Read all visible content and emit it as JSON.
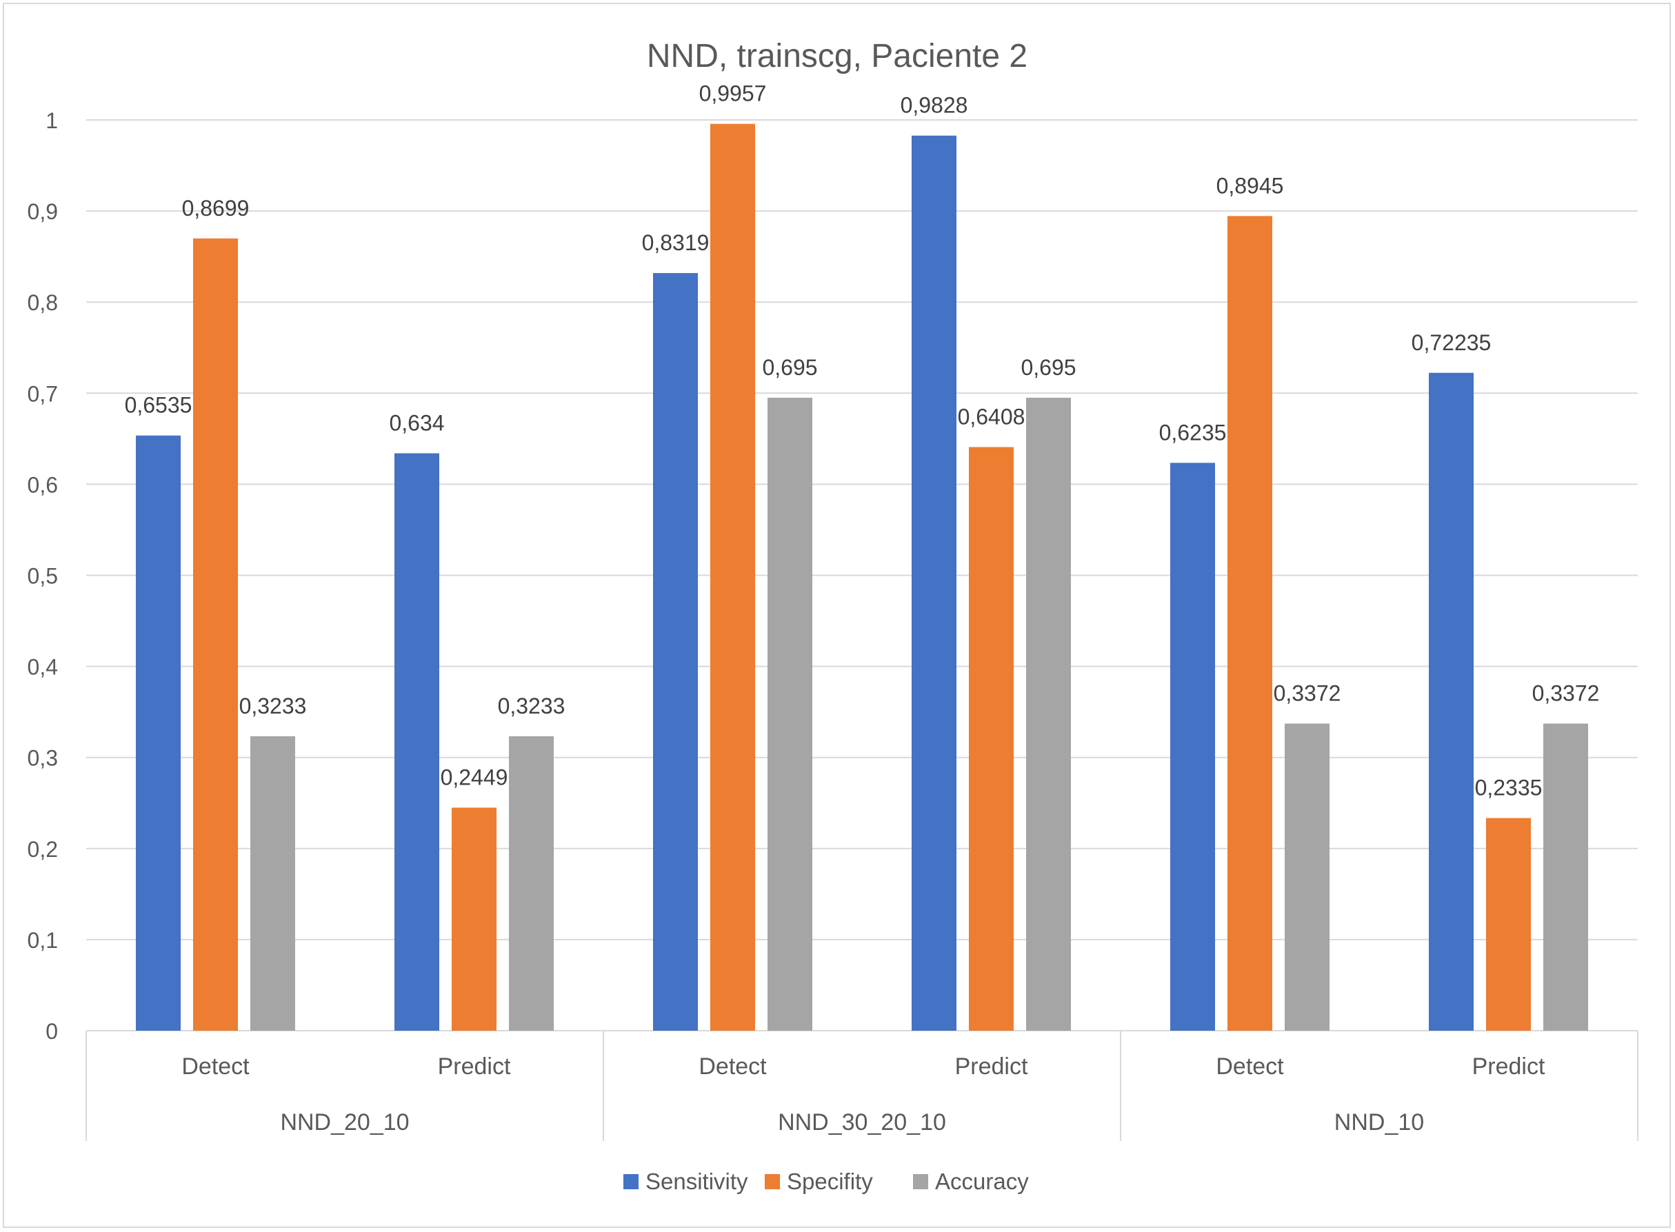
{
  "chart_data": {
    "type": "bar",
    "title": "NND, trainscg, Paciente 2",
    "xlabel": "",
    "ylabel": "",
    "ylim": [
      0,
      1
    ],
    "y_ticks": [
      "0",
      "0,1",
      "0,2",
      "0,3",
      "0,4",
      "0,5",
      "0,6",
      "0,7",
      "0,8",
      "0,9",
      "1"
    ],
    "grid": true,
    "legend_position": "bottom",
    "groups": [
      {
        "name": "NND_20_10",
        "categories": [
          "Detect",
          "Predict"
        ]
      },
      {
        "name": "NND_30_20_10",
        "categories": [
          "Detect",
          "Predict"
        ]
      },
      {
        "name": "NND_10",
        "categories": [
          "Detect",
          "Predict"
        ]
      }
    ],
    "categories": [
      "Detect",
      "Predict",
      "Detect",
      "Predict",
      "Detect",
      "Predict"
    ],
    "series": [
      {
        "name": "Sensitivity",
        "color": "#4472c4",
        "values": [
          0.6535,
          0.634,
          0.8319,
          0.9828,
          0.6235,
          0.72235
        ],
        "labels": [
          "0,6535",
          "0,634",
          "0,8319",
          "0,9828",
          "0,6235",
          "0,72235"
        ]
      },
      {
        "name": "Specifity",
        "color": "#ed7d31",
        "values": [
          0.8699,
          0.2449,
          0.9957,
          0.6408,
          0.8945,
          0.2335
        ],
        "labels": [
          "0,8699",
          "0,2449",
          "0,9957",
          "0,6408",
          "0,8945",
          "0,2335"
        ]
      },
      {
        "name": "Accuracy",
        "color": "#a5a5a5",
        "values": [
          0.3233,
          0.3233,
          0.695,
          0.695,
          0.3372,
          0.3372
        ],
        "labels": [
          "0,3233",
          "0,3233",
          "0,695",
          "0,695",
          "0,3372",
          "0,3372"
        ]
      }
    ]
  }
}
